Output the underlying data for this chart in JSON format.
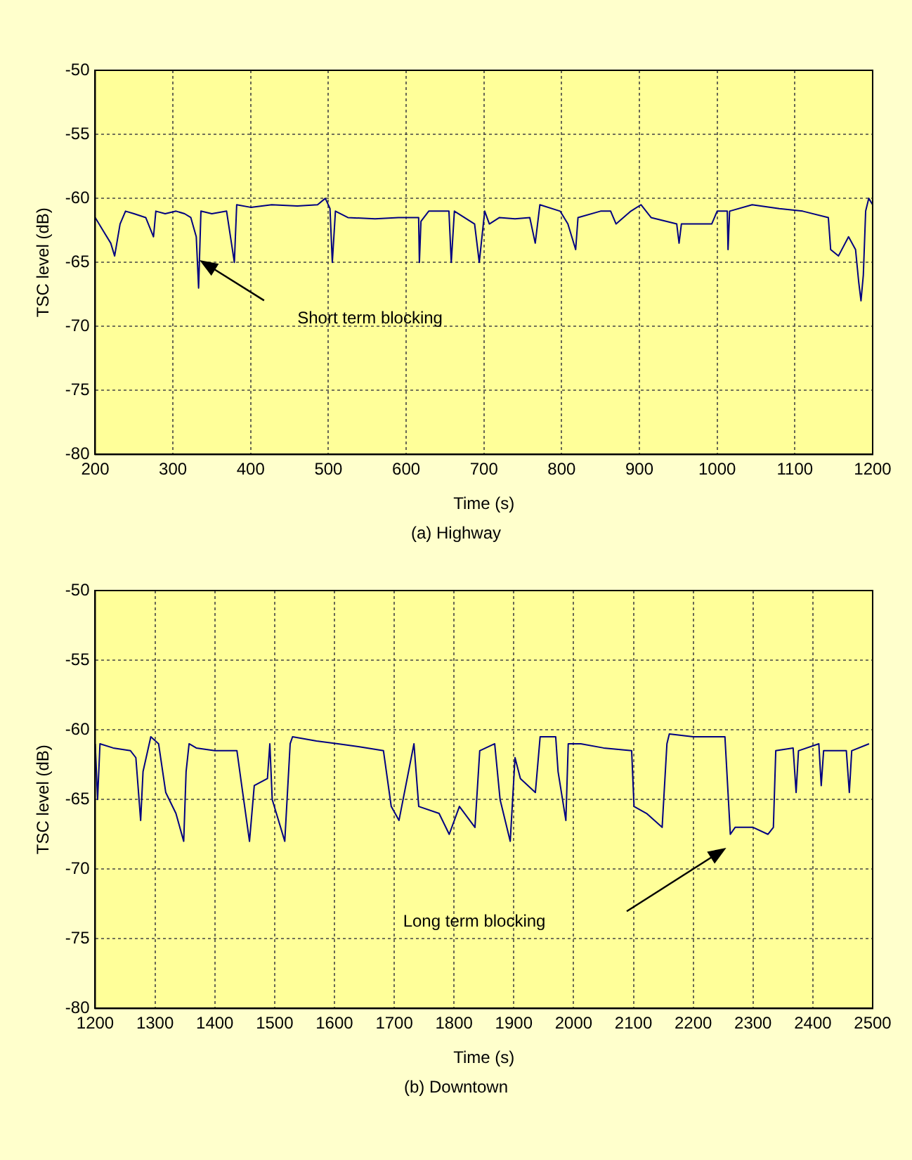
{
  "chart_data": [
    {
      "type": "line",
      "title": "(a) Highway",
      "xlabel": "Time (s)",
      "ylabel": "TSC level (dB)",
      "xlim": [
        200,
        1200
      ],
      "ylim": [
        -80,
        -50
      ],
      "xticks": [
        200,
        300,
        400,
        500,
        600,
        700,
        800,
        900,
        1000,
        1100,
        1200
      ],
      "yticks": [
        -80,
        -75,
        -70,
        -65,
        -60,
        -55,
        -50
      ],
      "grid": true,
      "x": [
        200,
        210,
        220,
        225,
        232,
        239,
        250,
        265,
        275,
        278,
        290,
        304,
        315,
        323,
        330,
        333,
        336,
        350,
        369,
        379,
        382,
        400,
        427,
        460,
        486,
        496,
        502,
        505,
        509,
        525,
        560,
        590,
        616,
        617,
        619,
        629,
        655,
        658,
        662,
        688,
        694,
        701,
        707,
        720,
        740,
        759,
        766,
        772,
        798,
        808,
        818,
        821,
        850,
        863,
        870,
        889,
        902,
        915,
        948,
        951,
        954,
        993,
        1000,
        1013,
        1014,
        1016,
        1045,
        1080,
        1110,
        1143,
        1146,
        1156,
        1169,
        1178,
        1182,
        1185,
        1188,
        1191,
        1195,
        1200
      ],
      "series": [
        {
          "color": "#000080",
          "values": [
            -61.5,
            -62.5,
            -63.5,
            -64.5,
            -62,
            -61,
            -61.2,
            -61.5,
            -63,
            -61,
            -61.2,
            -61,
            -61.2,
            -61.5,
            -63,
            -67,
            -61,
            -61.2,
            -61,
            -65,
            -60.5,
            -60.7,
            -60.5,
            -60.6,
            -60.5,
            -60,
            -60.8,
            -65,
            -61,
            -61.5,
            -61.6,
            -61.5,
            -61.5,
            -65,
            -61.8,
            -61,
            -61,
            -65,
            -61,
            -62,
            -65,
            -61,
            -62,
            -61.5,
            -61.6,
            -61.5,
            -63.5,
            -60.5,
            -61,
            -62,
            -64,
            -61.5,
            -61,
            -61,
            -62,
            -61,
            -60.5,
            -61.5,
            -62,
            -63.5,
            -62,
            -62,
            -61,
            -61,
            -64,
            -61,
            -60.5,
            -60.8,
            -61,
            -61.5,
            -64,
            -64.5,
            -63,
            -64,
            -66.5,
            -68,
            -66,
            -61,
            -60,
            -60.5
          ]
        }
      ],
      "annotations": [
        "Short term blocking"
      ]
    },
    {
      "type": "line",
      "title": "(b) Downtown",
      "xlabel": "Time (s)",
      "ylabel": "TSC level (dB)",
      "xlim": [
        1200,
        2500
      ],
      "ylim": [
        -80,
        -50
      ],
      "xticks": [
        1200,
        1300,
        1400,
        1500,
        1600,
        1700,
        1800,
        1900,
        2000,
        2100,
        2200,
        2300,
        2400,
        2500
      ],
      "yticks": [
        -80,
        -75,
        -70,
        -65,
        -60,
        -55,
        -50
      ],
      "grid": true,
      "x": [
        1200,
        1204,
        1208,
        1230,
        1259,
        1268,
        1276,
        1280,
        1293,
        1306,
        1318,
        1335,
        1348,
        1352,
        1357,
        1369,
        1400,
        1437,
        1445,
        1458,
        1466,
        1488,
        1492,
        1496,
        1517,
        1526,
        1530,
        1570,
        1606,
        1640,
        1682,
        1695,
        1708,
        1733,
        1741,
        1775,
        1792,
        1809,
        1835,
        1843,
        1868,
        1877,
        1894,
        1902,
        1911,
        1936,
        1944,
        1970,
        1974,
        1987,
        1991,
        2012,
        2050,
        2097,
        2101,
        2122,
        2148,
        2156,
        2160,
        2200,
        2253,
        2262,
        2270,
        2300,
        2325,
        2334,
        2338,
        2367,
        2372,
        2376,
        2410,
        2414,
        2418,
        2456,
        2461,
        2465,
        2494
      ],
      "series": [
        {
          "color": "#000080",
          "values": [
            -61,
            -65,
            -61,
            -61.3,
            -61.5,
            -62,
            -66.5,
            -63,
            -60.5,
            -61,
            -64.5,
            -66,
            -68,
            -63,
            -61,
            -61.3,
            -61.5,
            -61.5,
            -64,
            -68,
            -64,
            -63.5,
            -61,
            -65,
            -68,
            -61,
            -60.5,
            -60.8,
            -61,
            -61.2,
            -61.5,
            -65.5,
            -66.5,
            -61,
            -65.5,
            -66,
            -67.5,
            -65.5,
            -67,
            -61.5,
            -61,
            -65,
            -68,
            -62,
            -63.5,
            -64.5,
            -60.5,
            -60.5,
            -63,
            -66.5,
            -61,
            -61,
            -61.3,
            -61.5,
            -65.5,
            -66,
            -67,
            -61,
            -60.3,
            -60.5,
            -60.5,
            -67.5,
            -67,
            -67,
            -67.5,
            -67,
            -61.5,
            -61.3,
            -64.5,
            -61.5,
            -61,
            -64,
            -61.5,
            -61.5,
            -64.5,
            -61.5,
            -61
          ]
        }
      ],
      "annotations": [
        "Long term blocking"
      ]
    }
  ]
}
